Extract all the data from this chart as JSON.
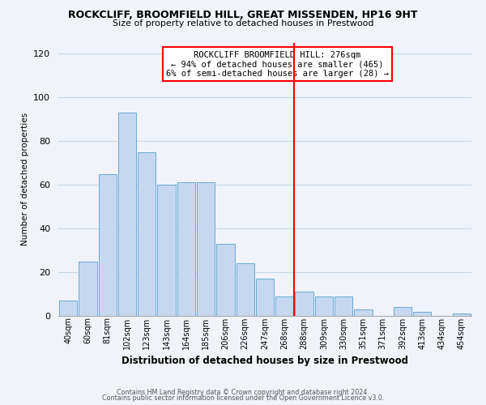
{
  "title1": "ROCKCLIFF, BROOMFIELD HILL, GREAT MISSENDEN, HP16 9HT",
  "title2": "Size of property relative to detached houses in Prestwood",
  "xlabel": "Distribution of detached houses by size in Prestwood",
  "ylabel": "Number of detached properties",
  "bar_labels": [
    "40sqm",
    "60sqm",
    "81sqm",
    "102sqm",
    "123sqm",
    "143sqm",
    "164sqm",
    "185sqm",
    "206sqm",
    "226sqm",
    "247sqm",
    "268sqm",
    "288sqm",
    "309sqm",
    "330sqm",
    "351sqm",
    "371sqm",
    "392sqm",
    "413sqm",
    "434sqm",
    "454sqm"
  ],
  "bar_values": [
    7,
    25,
    65,
    93,
    75,
    60,
    61,
    61,
    33,
    24,
    17,
    9,
    11,
    9,
    9,
    3,
    0,
    4,
    2,
    0,
    1
  ],
  "bar_color": "#c5d8f0",
  "bar_edge_color": "#6aaad4",
  "vline_color": "red",
  "ylim": [
    0,
    125
  ],
  "yticks": [
    0,
    20,
    40,
    60,
    80,
    100,
    120
  ],
  "annotation_title": "ROCKCLIFF BROOMFIELD HILL: 276sqm",
  "annotation_line1": "← 94% of detached houses are smaller (465)",
  "annotation_line2": "6% of semi-detached houses are larger (28) →",
  "footer1": "Contains HM Land Registry data © Crown copyright and database right 2024.",
  "footer2": "Contains public sector information licensed under the Open Government Licence v3.0.",
  "bg_color": "#f0f4fa",
  "grid_color": "#c8d8e8"
}
